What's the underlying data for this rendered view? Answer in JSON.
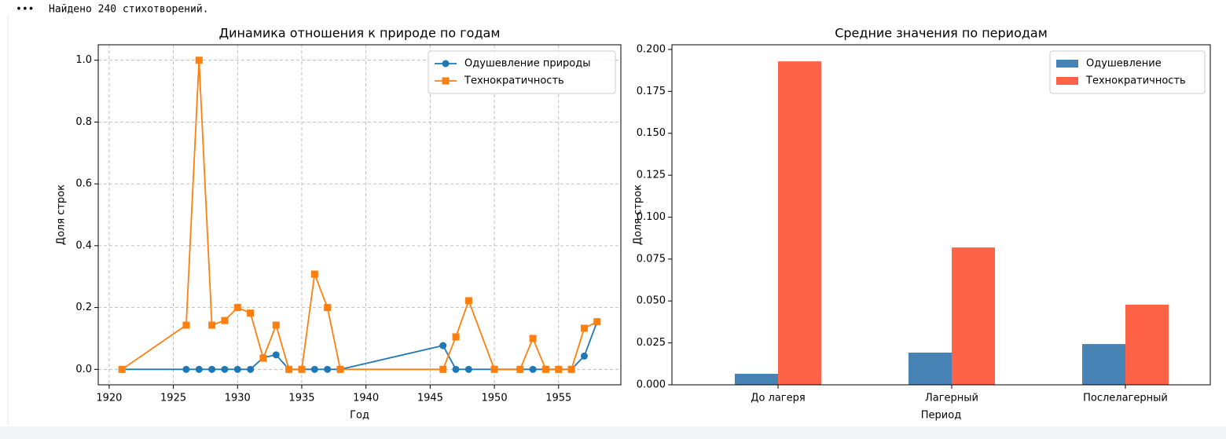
{
  "output_text": "Найдено 240 стихотворений.",
  "chart_data": [
    {
      "type": "line",
      "title": "Динамика отношения к природе по годам",
      "xlabel": "Год",
      "ylabel": "Доля строк",
      "x": [
        1921,
        1926,
        1927,
        1928,
        1929,
        1930,
        1931,
        1932,
        1933,
        1934,
        1935,
        1936,
        1937,
        1938,
        1946,
        1947,
        1948,
        1950,
        1952,
        1953,
        1954,
        1955,
        1956,
        1957,
        1958
      ],
      "series": [
        {
          "name": "Одушевление природы",
          "color": "#1f77b4",
          "marker": "o",
          "values": [
            0,
            0,
            0,
            0,
            0,
            0,
            0,
            0.038,
            0.047,
            0,
            0,
            0,
            0,
            0,
            0.077,
            0,
            0,
            0,
            0,
            0,
            0,
            0,
            0,
            0.043,
            0.154
          ]
        },
        {
          "name": "Технократичность",
          "color": "#ff7f0e",
          "marker": "s",
          "values": [
            0,
            0.143,
            1.0,
            0.143,
            0.158,
            0.2,
            0.182,
            0.036,
            0.143,
            0,
            0,
            0.308,
            0.2,
            0,
            0,
            0.105,
            0.222,
            0,
            0,
            0.1,
            0,
            0,
            0,
            0.133,
            0.154
          ]
        }
      ],
      "xlim": [
        1919.15,
        1959.85
      ],
      "ylim": [
        -0.05,
        1.05
      ],
      "xticks": [
        1920,
        1925,
        1930,
        1935,
        1940,
        1945,
        1950,
        1955
      ],
      "yticks": [
        {
          "value": 0,
          "label": "0.0"
        },
        {
          "value": 0.2,
          "label": "0.2"
        },
        {
          "value": 0.4,
          "label": "0.4"
        },
        {
          "value": 0.6,
          "label": "0.6"
        },
        {
          "value": 0.8,
          "label": "0.8"
        },
        {
          "value": 1,
          "label": "1.0"
        }
      ],
      "grid": true,
      "legend": "upper right"
    },
    {
      "type": "bar",
      "title": "Средние значения по периодам",
      "xlabel": "Период",
      "ylabel": "Доля строк",
      "categories": [
        "До лагеря",
        "Лагерный",
        "Послелагерный"
      ],
      "series": [
        {
          "name": "Одушевление",
          "color": "#4682b4",
          "values": [
            0.0066,
            0.0192,
            0.0243
          ]
        },
        {
          "name": "Технократичность",
          "color": "#ff6347",
          "values": [
            0.1929,
            0.0819,
            0.0478
          ]
        }
      ],
      "ylim": [
        0,
        0.2028
      ],
      "yticks": [
        {
          "value": 0,
          "label": "0.000"
        },
        {
          "value": 0.025,
          "label": "0.025"
        },
        {
          "value": 0.05,
          "label": "0.050"
        },
        {
          "value": 0.075,
          "label": "0.075"
        },
        {
          "value": 0.1,
          "label": "0.100"
        },
        {
          "value": 0.125,
          "label": "0.125"
        },
        {
          "value": 0.15,
          "label": "0.150"
        },
        {
          "value": 0.175,
          "label": "0.175"
        },
        {
          "value": 0.2,
          "label": "0.200"
        }
      ],
      "grid": false,
      "legend": "upper right"
    }
  ]
}
